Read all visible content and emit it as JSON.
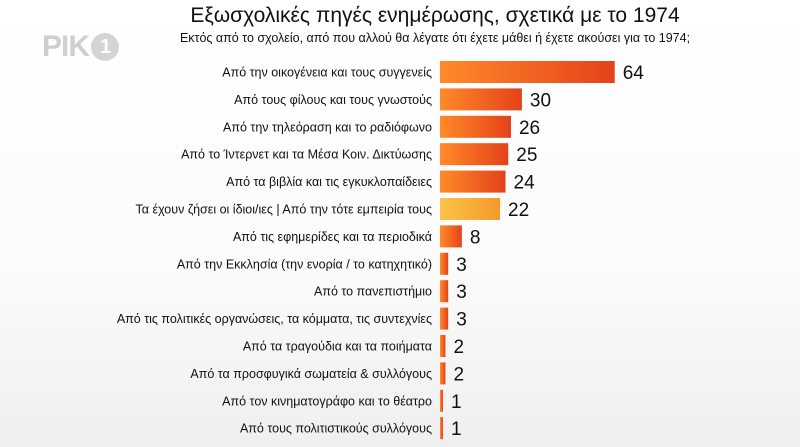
{
  "channel_logo": {
    "text": "ΡΙΚ",
    "number": "1"
  },
  "chart_data": {
    "type": "bar",
    "orientation": "horizontal",
    "title": "Εξωσχολικές πηγές ενημέρωσης, σχετικά με το 1974",
    "subtitle": "Εκτός από το σχολείο, από που αλλού θα λέγατε ότι έχετε μάθει ή έχετε ακούσει για το 1974;",
    "categories": [
      "Από την οικογένεια και τους συγγενείς",
      "Από τους φίλους και τους γνωστούς",
      "Από την τηλεόραση και το ραδιόφωνο",
      "Από το Ίντερνετ και τα Μέσα Κοιν. Δικτύωσης",
      "Από τα βιβλία και τις εγκυκλοπαίδειες",
      "Τα έχουν ζήσει οι ίδιοι/ιες | Από την τότε εμπειρία τους",
      "Από τις εφημερίδες και τα περιοδικά",
      "Από την Εκκλησία (την ενορία / το κατηχητικό)",
      "Από το πανεπιστήμιο",
      "Από τις πολιτικές οργανώσεις,  τα κόμματα, τις συντεχνίες",
      "Από τα τραγούδια και τα ποιήματα",
      "Από τα προσφυγικά σωματεία & συλλόγους",
      "Από τον κινηματογράφο και το θέατρο",
      "Από τους πολιτιστικούς συλλόγους"
    ],
    "values": [
      64,
      30,
      26,
      25,
      24,
      22,
      8,
      3,
      3,
      3,
      2,
      2,
      1,
      1
    ],
    "highlight_index": 5,
    "colors": {
      "bar_main": "#f0641e",
      "bar_dark": "#e0401a",
      "bar_highlight": "#f7a22a",
      "bar_highlight_light": "#fbc34a"
    },
    "legend": "none",
    "grid": false
  }
}
